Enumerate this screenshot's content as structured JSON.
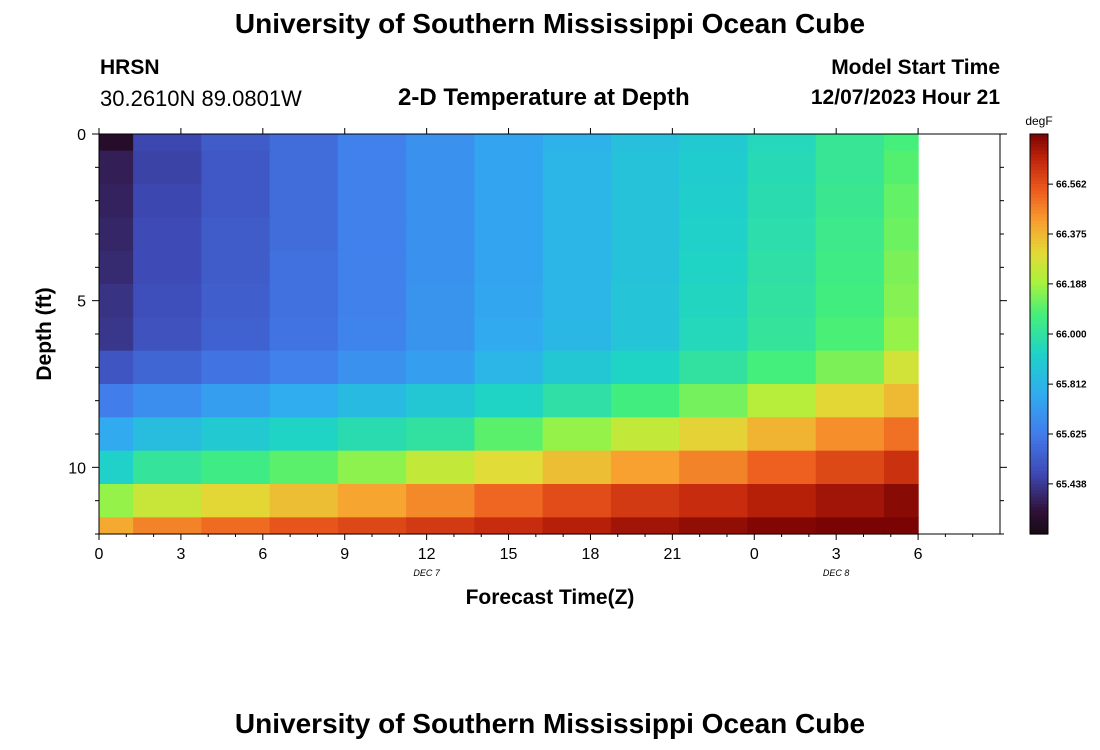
{
  "header": {
    "title": "University of Southern Mississippi Ocean Cube",
    "station_id": "HRSN",
    "coords": "30.2610N  89.0801W",
    "plot_title": "2-D Temperature at Depth",
    "model_start_label": "Model Start Time",
    "model_start_value": "12/07/2023 Hour 21"
  },
  "footer": {
    "title": "University of Southern Mississippi Ocean Cube"
  },
  "chart_data": {
    "type": "heatmap",
    "title": "2-D Temperature at Depth",
    "xlabel": "Forecast Time(Z)",
    "ylabel": "Depth (ft)",
    "x_range_hours": [
      0,
      33
    ],
    "y_range_ft": [
      0,
      12
    ],
    "y_inverted": true,
    "x_ticks": [
      {
        "hour": 0,
        "label": "0"
      },
      {
        "hour": 3,
        "label": "3"
      },
      {
        "hour": 6,
        "label": "6"
      },
      {
        "hour": 9,
        "label": "9"
      },
      {
        "hour": 12,
        "label": "12"
      },
      {
        "hour": 15,
        "label": "15"
      },
      {
        "hour": 18,
        "label": "18"
      },
      {
        "hour": 21,
        "label": "21"
      },
      {
        "hour": 24,
        "label": "0"
      },
      {
        "hour": 27,
        "label": "3"
      },
      {
        "hour": 30,
        "label": "6"
      }
    ],
    "date_labels": [
      {
        "hour": 12,
        "label": "DEC 7"
      },
      {
        "hour": 27,
        "label": "DEC 8"
      }
    ],
    "y_ticks": [
      0,
      5,
      10
    ],
    "column_hours": [
      0,
      2.5,
      5,
      7.5,
      10,
      12.5,
      15,
      17.5,
      20,
      22.5,
      25,
      27.5,
      30
    ],
    "column_edges_hours": [
      0,
      1.25,
      3.75,
      6.25,
      8.75,
      11.25,
      13.75,
      16.25,
      18.75,
      21.25,
      23.75,
      26.25,
      28.75,
      30
    ],
    "row_edges_ft": [
      0,
      0.5,
      1.5,
      2.5,
      3.5,
      4.5,
      5.5,
      6.5,
      7.5,
      8.5,
      9.5,
      10.5,
      11.5,
      12
    ],
    "values": [
      [
        65.3,
        65.47,
        65.53,
        65.58,
        65.64,
        65.69,
        65.75,
        65.8,
        65.85,
        65.89,
        65.95,
        66.02,
        66.07
      ],
      [
        65.37,
        65.46,
        65.52,
        65.58,
        65.64,
        65.69,
        65.75,
        65.81,
        65.86,
        65.9,
        65.96,
        66.02,
        66.09
      ],
      [
        65.38,
        65.47,
        65.52,
        65.58,
        65.64,
        65.69,
        65.75,
        65.81,
        65.86,
        65.91,
        65.97,
        66.03,
        66.11
      ],
      [
        65.39,
        65.48,
        65.53,
        65.58,
        65.64,
        65.69,
        65.75,
        65.81,
        65.86,
        65.92,
        65.98,
        66.04,
        66.12
      ],
      [
        65.4,
        65.48,
        65.53,
        65.59,
        65.64,
        65.69,
        65.75,
        65.81,
        65.86,
        65.93,
        65.99,
        66.05,
        66.14
      ],
      [
        65.42,
        65.49,
        65.54,
        65.59,
        65.64,
        65.7,
        65.76,
        65.81,
        65.87,
        65.94,
        66.0,
        66.06,
        66.15
      ],
      [
        65.43,
        65.5,
        65.55,
        65.6,
        65.65,
        65.7,
        65.77,
        65.82,
        65.87,
        65.95,
        66.01,
        66.08,
        66.17
      ],
      [
        65.51,
        65.56,
        65.6,
        65.64,
        65.69,
        65.73,
        65.81,
        65.88,
        65.93,
        66.0,
        66.07,
        66.14,
        66.27
      ],
      [
        65.63,
        65.68,
        65.73,
        65.78,
        65.83,
        65.88,
        65.93,
        65.99,
        66.06,
        66.13,
        66.22,
        66.31,
        66.37
      ],
      [
        65.77,
        65.84,
        65.89,
        65.93,
        65.97,
        66.0,
        66.1,
        66.17,
        66.24,
        66.32,
        66.38,
        66.45,
        66.5
      ],
      [
        65.92,
        66.01,
        66.05,
        66.1,
        66.16,
        66.24,
        66.3,
        66.36,
        66.42,
        66.47,
        66.53,
        66.58,
        66.63
      ],
      [
        66.17,
        66.25,
        66.31,
        66.36,
        66.41,
        66.46,
        66.52,
        66.57,
        66.61,
        66.64,
        66.67,
        66.7,
        66.73
      ],
      [
        66.4,
        66.47,
        66.51,
        66.55,
        66.58,
        66.61,
        66.64,
        66.67,
        66.7,
        66.72,
        66.74,
        66.76,
        66.79
      ]
    ],
    "colorbar": {
      "unit": "degF",
      "min": 65.25,
      "max": 66.75,
      "tick_labels": [
        "65.438",
        "65.625",
        "65.812",
        "66.000",
        "66.188",
        "66.375",
        "66.562"
      ],
      "tick_values": [
        65.438,
        65.625,
        65.812,
        66.0,
        66.188,
        66.375,
        66.562
      ]
    }
  }
}
